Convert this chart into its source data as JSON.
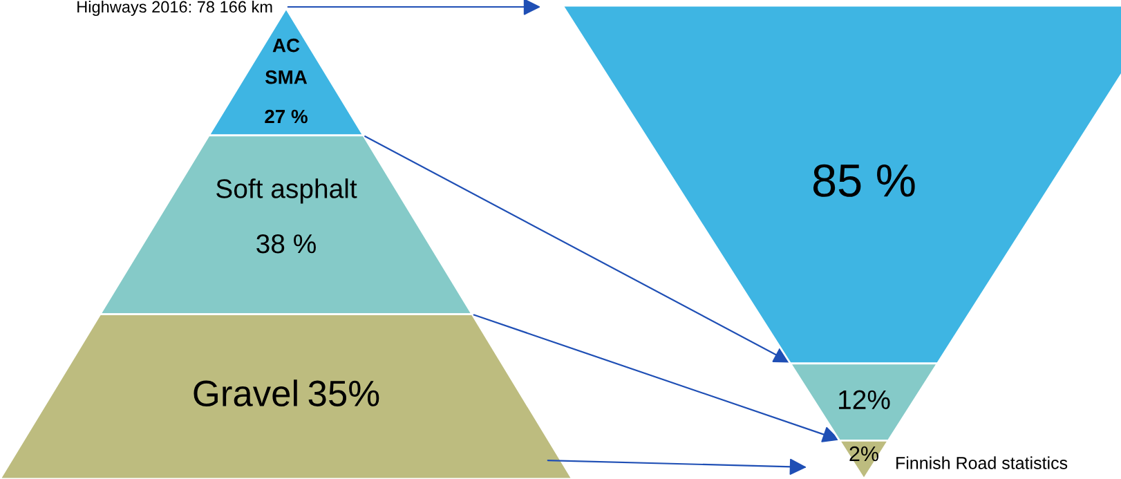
{
  "chart_data": [
    {
      "type": "other",
      "categories": [
        "AC\nSMA",
        "Soft asphalt",
        "Gravel"
      ],
      "colors": [
        "#3eb5e3",
        "#85cac8",
        "#bdbc7f"
      ],
      "values": [
        27,
        38,
        35
      ],
      "value_labels": [
        "27 %",
        "38 %",
        "35%"
      ],
      "annotations": [
        "Highways 2016: 78 166 km"
      ]
    },
    {
      "type": "other",
      "categories": [
        null,
        null,
        null
      ],
      "colors": [
        "#3eb5e3",
        "#85cac8",
        "#bdbc7f"
      ],
      "values": [
        85,
        12,
        2
      ],
      "value_labels": [
        "85 %",
        "12%",
        "2%"
      ],
      "annotations": [
        "Finnish Road statistics"
      ]
    }
  ]
}
